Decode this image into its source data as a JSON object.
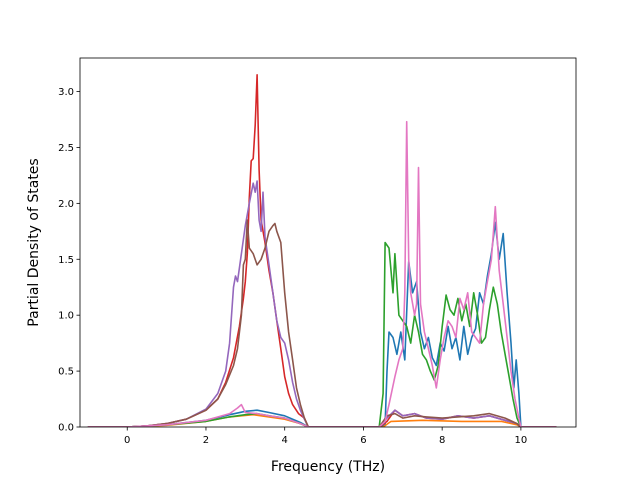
{
  "chart_data": {
    "type": "line",
    "title": "",
    "xlabel": "Frequency (THz)",
    "ylabel": "Partial Density of States",
    "xlim": [
      -1.2,
      11.4
    ],
    "ylim": [
      0,
      3.3
    ],
    "xticks": [
      0,
      2,
      4,
      6,
      8,
      10
    ],
    "xtick_labels": [
      "0",
      "2",
      "4",
      "6",
      "8",
      "10"
    ],
    "yticks": [
      0.0,
      0.5,
      1.0,
      1.5,
      2.0,
      2.5,
      3.0
    ],
    "ytick_labels": [
      "0.0",
      "0.5",
      "1.0",
      "1.5",
      "2.0",
      "2.5",
      "3.0"
    ],
    "grid": false,
    "legend": "none",
    "series": [
      {
        "color": "#1f77b4",
        "points": [
          [
            -1.0,
            0
          ],
          [
            0,
            0
          ],
          [
            1.0,
            0.02
          ],
          [
            2.0,
            0.06
          ],
          [
            2.6,
            0.11
          ],
          [
            3.0,
            0.14
          ],
          [
            3.3,
            0.15
          ],
          [
            3.6,
            0.13
          ],
          [
            4.0,
            0.1
          ],
          [
            4.4,
            0.04
          ],
          [
            4.6,
            0
          ],
          [
            6.4,
            0
          ],
          [
            6.55,
            0.02
          ],
          [
            6.6,
            0.5
          ],
          [
            6.65,
            0.85
          ],
          [
            6.75,
            0.8
          ],
          [
            6.85,
            0.65
          ],
          [
            6.95,
            0.85
          ],
          [
            7.05,
            0.6
          ],
          [
            7.15,
            1.48
          ],
          [
            7.25,
            1.2
          ],
          [
            7.35,
            1.3
          ],
          [
            7.45,
            0.85
          ],
          [
            7.55,
            0.7
          ],
          [
            7.65,
            0.8
          ],
          [
            7.75,
            0.62
          ],
          [
            7.85,
            0.55
          ],
          [
            7.95,
            0.75
          ],
          [
            8.05,
            0.68
          ],
          [
            8.15,
            0.9
          ],
          [
            8.25,
            0.7
          ],
          [
            8.35,
            0.8
          ],
          [
            8.45,
            0.6
          ],
          [
            8.55,
            0.9
          ],
          [
            8.65,
            0.65
          ],
          [
            8.75,
            0.8
          ],
          [
            8.85,
            0.88
          ],
          [
            8.95,
            1.2
          ],
          [
            9.05,
            1.1
          ],
          [
            9.15,
            1.35
          ],
          [
            9.25,
            1.55
          ],
          [
            9.35,
            1.83
          ],
          [
            9.45,
            1.5
          ],
          [
            9.55,
            1.73
          ],
          [
            9.65,
            1.2
          ],
          [
            9.75,
            0.75
          ],
          [
            9.82,
            0.35
          ],
          [
            9.88,
            0.6
          ],
          [
            9.95,
            0.3
          ],
          [
            10.0,
            0
          ],
          [
            10.9,
            0
          ]
        ]
      },
      {
        "color": "#ff7f0e",
        "points": [
          [
            -1.0,
            0
          ],
          [
            0,
            0
          ],
          [
            1.0,
            0.015
          ],
          [
            2.0,
            0.05
          ],
          [
            2.6,
            0.09
          ],
          [
            3.2,
            0.11
          ],
          [
            3.6,
            0.09
          ],
          [
            4.0,
            0.07
          ],
          [
            4.4,
            0.03
          ],
          [
            4.6,
            0
          ],
          [
            6.5,
            0
          ],
          [
            6.7,
            0.05
          ],
          [
            7.5,
            0.06
          ],
          [
            8.5,
            0.05
          ],
          [
            9.5,
            0.05
          ],
          [
            9.9,
            0.02
          ],
          [
            10.0,
            0
          ],
          [
            10.9,
            0
          ]
        ]
      },
      {
        "color": "#2ca02c",
        "points": [
          [
            -1.0,
            0
          ],
          [
            0,
            0
          ],
          [
            1.0,
            0.02
          ],
          [
            2.0,
            0.05
          ],
          [
            2.6,
            0.09
          ],
          [
            3.0,
            0.11
          ],
          [
            3.3,
            0.12
          ],
          [
            3.6,
            0.1
          ],
          [
            4.0,
            0.08
          ],
          [
            4.4,
            0.03
          ],
          [
            4.6,
            0
          ],
          [
            6.4,
            0
          ],
          [
            6.5,
            0.3
          ],
          [
            6.55,
            1.65
          ],
          [
            6.65,
            1.6
          ],
          [
            6.75,
            1.2
          ],
          [
            6.8,
            1.55
          ],
          [
            6.9,
            1.0
          ],
          [
            7.0,
            0.95
          ],
          [
            7.1,
            0.9
          ],
          [
            7.2,
            0.75
          ],
          [
            7.3,
            1.0
          ],
          [
            7.4,
            0.85
          ],
          [
            7.5,
            0.65
          ],
          [
            7.6,
            0.6
          ],
          [
            7.7,
            0.5
          ],
          [
            7.8,
            0.42
          ],
          [
            7.9,
            0.55
          ],
          [
            8.0,
            0.9
          ],
          [
            8.1,
            1.18
          ],
          [
            8.2,
            1.05
          ],
          [
            8.3,
            1.0
          ],
          [
            8.4,
            1.15
          ],
          [
            8.5,
            0.95
          ],
          [
            8.6,
            1.1
          ],
          [
            8.7,
            0.9
          ],
          [
            8.8,
            1.2
          ],
          [
            8.9,
            1.0
          ],
          [
            9.0,
            0.75
          ],
          [
            9.1,
            0.8
          ],
          [
            9.2,
            1.05
          ],
          [
            9.3,
            1.25
          ],
          [
            9.4,
            1.1
          ],
          [
            9.5,
            0.85
          ],
          [
            9.6,
            0.65
          ],
          [
            9.7,
            0.45
          ],
          [
            9.8,
            0.25
          ],
          [
            9.9,
            0.08
          ],
          [
            10.0,
            0
          ],
          [
            10.9,
            0
          ]
        ]
      },
      {
        "color": "#d62728",
        "points": [
          [
            -1.0,
            0
          ],
          [
            0,
            0
          ],
          [
            0.5,
            0.01
          ],
          [
            1.0,
            0.03
          ],
          [
            1.5,
            0.07
          ],
          [
            2.0,
            0.15
          ],
          [
            2.3,
            0.25
          ],
          [
            2.5,
            0.4
          ],
          [
            2.7,
            0.62
          ],
          [
            2.85,
            0.9
          ],
          [
            2.95,
            1.15
          ],
          [
            3.0,
            1.3
          ],
          [
            3.05,
            1.55
          ],
          [
            3.1,
            2.05
          ],
          [
            3.15,
            2.38
          ],
          [
            3.2,
            2.4
          ],
          [
            3.25,
            2.7
          ],
          [
            3.3,
            3.15
          ],
          [
            3.35,
            2.3
          ],
          [
            3.4,
            1.85
          ],
          [
            3.5,
            1.65
          ],
          [
            3.6,
            1.4
          ],
          [
            3.7,
            1.2
          ],
          [
            3.8,
            0.95
          ],
          [
            3.9,
            0.7
          ],
          [
            4.0,
            0.45
          ],
          [
            4.1,
            0.3
          ],
          [
            4.2,
            0.2
          ],
          [
            4.35,
            0.12
          ],
          [
            4.5,
            0.08
          ],
          [
            4.6,
            0
          ],
          [
            6.4,
            0
          ],
          [
            6.6,
            0.05
          ],
          [
            6.8,
            0.15
          ],
          [
            7.0,
            0.1
          ],
          [
            7.3,
            0.12
          ],
          [
            7.6,
            0.08
          ],
          [
            8.0,
            0.07
          ],
          [
            8.4,
            0.1
          ],
          [
            8.8,
            0.08
          ],
          [
            9.2,
            0.1
          ],
          [
            9.6,
            0.06
          ],
          [
            9.9,
            0.03
          ],
          [
            10.0,
            0
          ],
          [
            10.9,
            0
          ]
        ]
      },
      {
        "color": "#9467bd",
        "points": [
          [
            -1.0,
            0
          ],
          [
            0,
            0
          ],
          [
            0.5,
            0.01
          ],
          [
            1.0,
            0.03
          ],
          [
            1.5,
            0.07
          ],
          [
            2.0,
            0.16
          ],
          [
            2.3,
            0.3
          ],
          [
            2.5,
            0.5
          ],
          [
            2.6,
            0.75
          ],
          [
            2.7,
            1.25
          ],
          [
            2.75,
            1.35
          ],
          [
            2.8,
            1.3
          ],
          [
            2.9,
            1.55
          ],
          [
            3.0,
            1.8
          ],
          [
            3.1,
            2.0
          ],
          [
            3.2,
            2.18
          ],
          [
            3.25,
            2.1
          ],
          [
            3.3,
            2.2
          ],
          [
            3.35,
            1.85
          ],
          [
            3.4,
            1.75
          ],
          [
            3.45,
            2.1
          ],
          [
            3.5,
            1.7
          ],
          [
            3.6,
            1.45
          ],
          [
            3.7,
            1.2
          ],
          [
            3.8,
            0.95
          ],
          [
            3.9,
            0.8
          ],
          [
            4.0,
            0.75
          ],
          [
            4.1,
            0.6
          ],
          [
            4.2,
            0.4
          ],
          [
            4.3,
            0.25
          ],
          [
            4.4,
            0.15
          ],
          [
            4.5,
            0.07
          ],
          [
            4.6,
            0
          ],
          [
            6.4,
            0
          ],
          [
            6.6,
            0.08
          ],
          [
            6.8,
            0.15
          ],
          [
            7.0,
            0.1
          ],
          [
            7.3,
            0.12
          ],
          [
            7.6,
            0.08
          ],
          [
            8.0,
            0.07
          ],
          [
            8.4,
            0.1
          ],
          [
            8.8,
            0.08
          ],
          [
            9.2,
            0.1
          ],
          [
            9.6,
            0.06
          ],
          [
            9.9,
            0.03
          ],
          [
            10.0,
            0
          ],
          [
            10.9,
            0
          ]
        ]
      },
      {
        "color": "#8c564b",
        "points": [
          [
            -1.0,
            0
          ],
          [
            0,
            0
          ],
          [
            0.5,
            0.01
          ],
          [
            1.0,
            0.03
          ],
          [
            1.5,
            0.07
          ],
          [
            2.0,
            0.15
          ],
          [
            2.3,
            0.25
          ],
          [
            2.5,
            0.38
          ],
          [
            2.7,
            0.55
          ],
          [
            2.8,
            0.7
          ],
          [
            2.9,
            1.0
          ],
          [
            2.95,
            1.45
          ],
          [
            3.0,
            1.5
          ],
          [
            3.05,
            1.85
          ],
          [
            3.1,
            1.6
          ],
          [
            3.2,
            1.55
          ],
          [
            3.3,
            1.45
          ],
          [
            3.4,
            1.5
          ],
          [
            3.5,
            1.6
          ],
          [
            3.6,
            1.75
          ],
          [
            3.7,
            1.8
          ],
          [
            3.75,
            1.82
          ],
          [
            3.8,
            1.75
          ],
          [
            3.9,
            1.65
          ],
          [
            4.0,
            1.2
          ],
          [
            4.1,
            0.85
          ],
          [
            4.2,
            0.6
          ],
          [
            4.3,
            0.35
          ],
          [
            4.4,
            0.2
          ],
          [
            4.5,
            0.08
          ],
          [
            4.6,
            0
          ],
          [
            6.4,
            0
          ],
          [
            6.6,
            0.1
          ],
          [
            6.8,
            0.12
          ],
          [
            7.0,
            0.08
          ],
          [
            7.3,
            0.1
          ],
          [
            7.6,
            0.09
          ],
          [
            8.0,
            0.08
          ],
          [
            8.4,
            0.09
          ],
          [
            8.8,
            0.1
          ],
          [
            9.2,
            0.12
          ],
          [
            9.6,
            0.08
          ],
          [
            9.9,
            0.03
          ],
          [
            10.0,
            0
          ],
          [
            10.9,
            0
          ]
        ]
      },
      {
        "color": "#e377c2",
        "points": [
          [
            -1.0,
            0
          ],
          [
            0,
            0
          ],
          [
            1.0,
            0.02
          ],
          [
            2.0,
            0.06
          ],
          [
            2.6,
            0.12
          ],
          [
            2.8,
            0.17
          ],
          [
            2.9,
            0.2
          ],
          [
            3.0,
            0.13
          ],
          [
            3.3,
            0.12
          ],
          [
            3.6,
            0.1
          ],
          [
            4.0,
            0.08
          ],
          [
            4.4,
            0.03
          ],
          [
            4.6,
            0
          ],
          [
            6.4,
            0
          ],
          [
            6.55,
            0.05
          ],
          [
            6.65,
            0.2
          ],
          [
            6.8,
            0.45
          ],
          [
            6.9,
            0.6
          ],
          [
            7.0,
            0.7
          ],
          [
            7.05,
            1.2
          ],
          [
            7.1,
            2.73
          ],
          [
            7.15,
            1.5
          ],
          [
            7.2,
            1.2
          ],
          [
            7.3,
            1.0
          ],
          [
            7.35,
            1.1
          ],
          [
            7.4,
            2.32
          ],
          [
            7.45,
            1.1
          ],
          [
            7.55,
            0.85
          ],
          [
            7.65,
            0.7
          ],
          [
            7.75,
            0.55
          ],
          [
            7.85,
            0.35
          ],
          [
            7.95,
            0.6
          ],
          [
            8.05,
            0.8
          ],
          [
            8.15,
            0.95
          ],
          [
            8.25,
            0.9
          ],
          [
            8.35,
            0.8
          ],
          [
            8.45,
            1.15
          ],
          [
            8.55,
            1.05
          ],
          [
            8.65,
            1.2
          ],
          [
            8.75,
            0.85
          ],
          [
            8.85,
            0.8
          ],
          [
            8.95,
            0.75
          ],
          [
            9.05,
            1.1
          ],
          [
            9.15,
            1.3
          ],
          [
            9.25,
            1.5
          ],
          [
            9.35,
            1.97
          ],
          [
            9.45,
            1.4
          ],
          [
            9.55,
            1.1
          ],
          [
            9.65,
            0.8
          ],
          [
            9.75,
            0.5
          ],
          [
            9.85,
            0.25
          ],
          [
            9.95,
            0.08
          ],
          [
            10.0,
            0
          ],
          [
            10.9,
            0
          ]
        ]
      }
    ]
  }
}
